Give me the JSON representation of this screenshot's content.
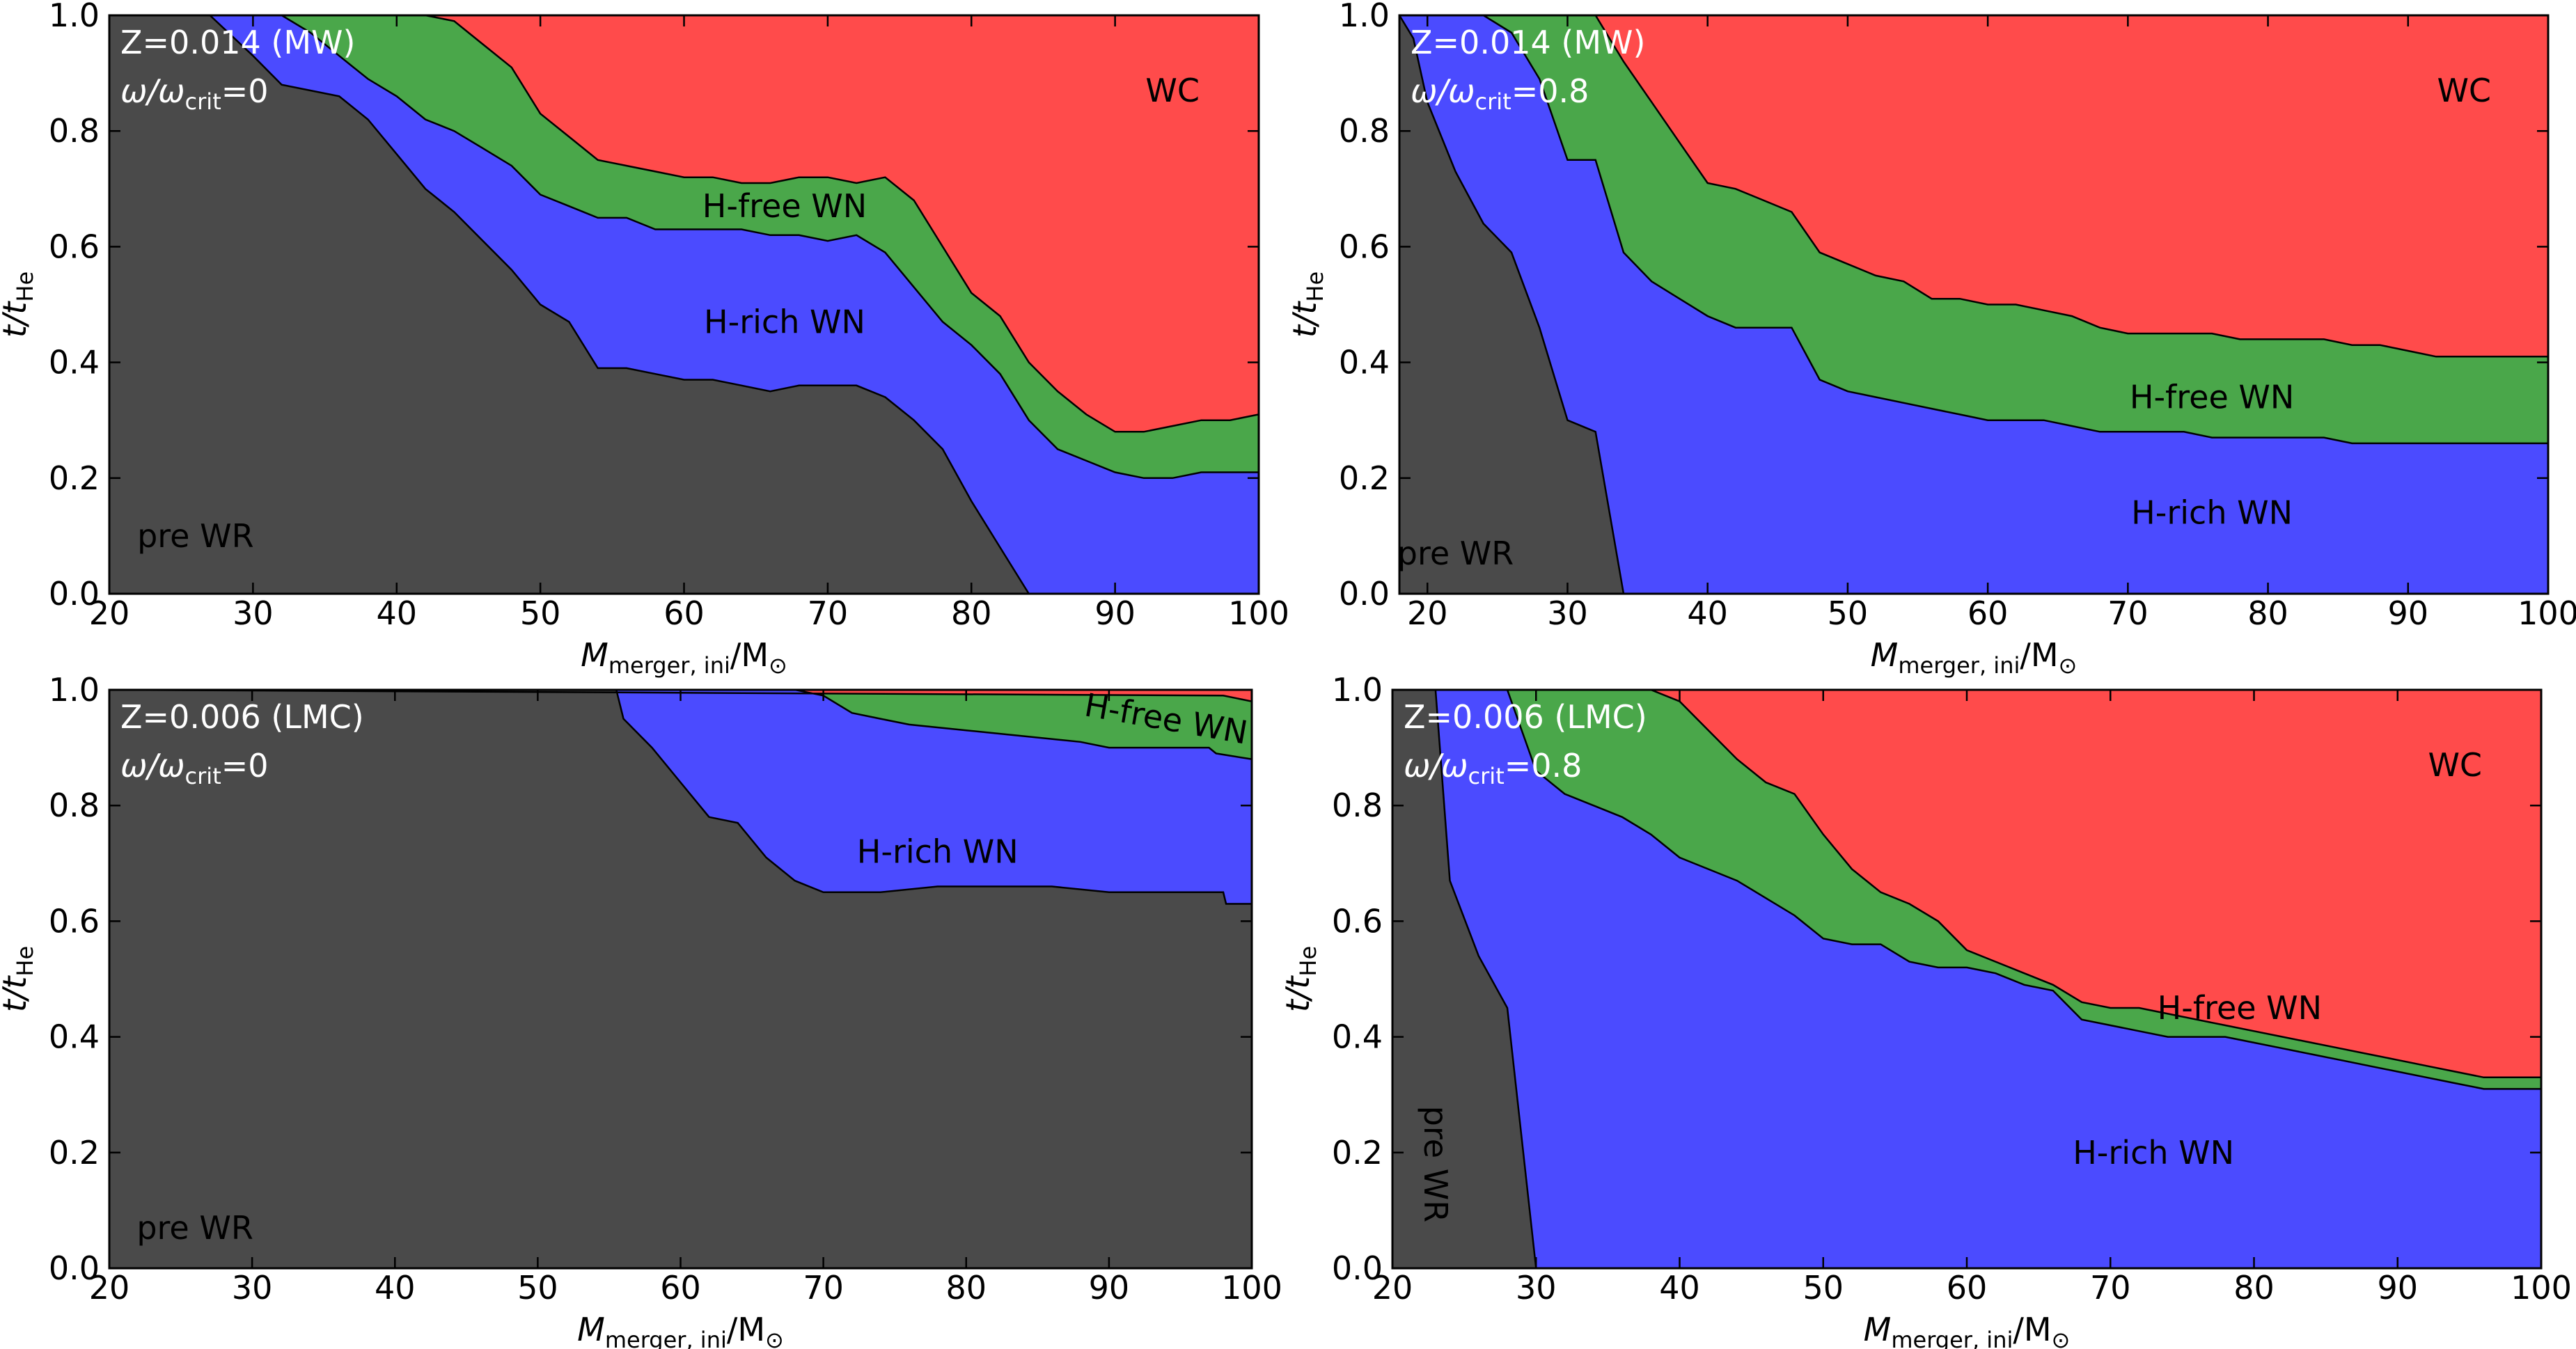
{
  "figure": {
    "y_axis_label": "t/t",
    "y_axis_label_sub": "He",
    "x_axis_label": "M",
    "x_axis_label_sub": "merger, ini",
    "x_axis_label_unit": "/M",
    "x_axis_label_unit_sub": "⊙",
    "colors": {
      "pre WR": "#4a4a4a",
      "H-rich WN": "#4b4bff",
      "H-free WN": "#4aa74a",
      "WC": "#ff4b4b"
    }
  },
  "chart_data": [
    {
      "type": "area",
      "title_line1": "Z=0.014 (MW)",
      "title_line2_symbol": "ω/ω",
      "title_line2_sub": "crit",
      "title_line2_value": "=0",
      "xlim": [
        20,
        100
      ],
      "ylim": [
        0,
        1
      ],
      "xticks": [
        20,
        30,
        40,
        50,
        60,
        70,
        80,
        90,
        100
      ],
      "yticks": [
        0.0,
        0.2,
        0.4,
        0.6,
        0.8,
        1.0
      ],
      "boundaries": [
        {
          "name": "preWR",
          "x": [
            20,
            27,
            30,
            32,
            34,
            36,
            38,
            40,
            42,
            44,
            46,
            48,
            50,
            52,
            54,
            56,
            58,
            60,
            62,
            64,
            66,
            68,
            70,
            72,
            74,
            76,
            78,
            80,
            82,
            84
          ],
          "y": [
            1.0,
            1.0,
            0.93,
            0.88,
            0.87,
            0.86,
            0.82,
            0.76,
            0.7,
            0.66,
            0.61,
            0.56,
            0.5,
            0.47,
            0.39,
            0.39,
            0.38,
            0.37,
            0.37,
            0.36,
            0.35,
            0.36,
            0.36,
            0.36,
            0.34,
            0.3,
            0.25,
            0.16,
            0.08,
            0.0
          ]
        },
        {
          "name": "Hrich",
          "x": [
            20,
            32,
            34,
            36,
            38,
            40,
            42,
            44,
            46,
            48,
            50,
            52,
            54,
            56,
            58,
            60,
            62,
            64,
            66,
            68,
            70,
            72,
            74,
            76,
            78,
            80,
            82,
            84,
            86,
            88,
            90,
            92,
            94,
            96,
            98,
            100
          ],
          "y": [
            1.0,
            1.0,
            0.97,
            0.93,
            0.89,
            0.86,
            0.82,
            0.8,
            0.77,
            0.74,
            0.69,
            0.67,
            0.65,
            0.65,
            0.63,
            0.63,
            0.63,
            0.63,
            0.62,
            0.62,
            0.61,
            0.62,
            0.59,
            0.53,
            0.47,
            0.43,
            0.38,
            0.3,
            0.25,
            0.23,
            0.21,
            0.2,
            0.2,
            0.21,
            0.21,
            0.21
          ]
        },
        {
          "name": "Hfree",
          "x": [
            20,
            40,
            42,
            44,
            46,
            48,
            50,
            52,
            54,
            56,
            58,
            60,
            62,
            64,
            66,
            68,
            70,
            72,
            74,
            76,
            78,
            80,
            82,
            84,
            86,
            88,
            90,
            92,
            94,
            96,
            98,
            100
          ],
          "y": [
            1.0,
            1.0,
            1.0,
            0.99,
            0.95,
            0.91,
            0.83,
            0.79,
            0.75,
            0.74,
            0.73,
            0.72,
            0.72,
            0.71,
            0.71,
            0.72,
            0.72,
            0.71,
            0.72,
            0.68,
            0.6,
            0.52,
            0.48,
            0.4,
            0.35,
            0.31,
            0.28,
            0.28,
            0.29,
            0.3,
            0.3,
            0.31
          ]
        }
      ],
      "labels": [
        {
          "text": "WC",
          "x": 94,
          "y": 0.87,
          "color": "black",
          "rotate": 0
        },
        {
          "text": "H-free WN",
          "x": 67,
          "y": 0.67,
          "color": "black",
          "rotate": 0
        },
        {
          "text": "H-rich WN",
          "x": 67,
          "y": 0.47,
          "color": "black",
          "rotate": 0
        },
        {
          "text": "pre WR",
          "x": 26,
          "y": 0.1,
          "color": "black",
          "rotate": 0
        }
      ]
    },
    {
      "type": "area",
      "title_line1": "Z=0.014 (MW)",
      "title_line2_symbol": "ω/ω",
      "title_line2_sub": "crit",
      "title_line2_value": "=0.8",
      "xlim": [
        18,
        100
      ],
      "ylim": [
        0,
        1
      ],
      "xticks": [
        20,
        30,
        40,
        50,
        60,
        70,
        80,
        90,
        100
      ],
      "yticks": [
        0.0,
        0.2,
        0.4,
        0.6,
        0.8,
        1.0
      ],
      "boundaries": [
        {
          "name": "preWR",
          "x": [
            18,
            19,
            20,
            22,
            24,
            26,
            28,
            30,
            32,
            34
          ],
          "y": [
            1.0,
            0.96,
            0.85,
            0.73,
            0.64,
            0.59,
            0.46,
            0.3,
            0.28,
            0.0
          ]
        },
        {
          "name": "Hrich",
          "x": [
            18,
            24,
            26,
            28,
            30,
            32,
            34,
            36,
            38,
            40,
            42,
            44,
            46,
            48,
            50,
            52,
            54,
            56,
            58,
            60,
            62,
            64,
            66,
            68,
            70,
            72,
            74,
            76,
            78,
            80,
            82,
            84,
            86,
            88,
            90,
            92,
            94,
            96,
            98,
            100
          ],
          "y": [
            1.0,
            1.0,
            0.97,
            0.89,
            0.75,
            0.75,
            0.59,
            0.54,
            0.51,
            0.48,
            0.46,
            0.46,
            0.46,
            0.37,
            0.35,
            0.34,
            0.33,
            0.32,
            0.31,
            0.3,
            0.3,
            0.3,
            0.29,
            0.28,
            0.28,
            0.28,
            0.28,
            0.27,
            0.27,
            0.27,
            0.27,
            0.27,
            0.26,
            0.26,
            0.26,
            0.26,
            0.26,
            0.26,
            0.26,
            0.26
          ]
        },
        {
          "name": "Hfree",
          "x": [
            18,
            32,
            34,
            36,
            38,
            40,
            42,
            44,
            46,
            48,
            50,
            52,
            54,
            56,
            58,
            60,
            62,
            64,
            66,
            68,
            70,
            72,
            74,
            76,
            78,
            80,
            82,
            84,
            86,
            88,
            90,
            92,
            94,
            96,
            98,
            100
          ],
          "y": [
            1.0,
            1.0,
            0.92,
            0.85,
            0.78,
            0.71,
            0.7,
            0.68,
            0.66,
            0.59,
            0.57,
            0.55,
            0.54,
            0.51,
            0.51,
            0.5,
            0.5,
            0.49,
            0.48,
            0.46,
            0.45,
            0.45,
            0.45,
            0.45,
            0.44,
            0.44,
            0.44,
            0.44,
            0.43,
            0.43,
            0.42,
            0.41,
            0.41,
            0.41,
            0.41,
            0.41
          ]
        }
      ],
      "labels": [
        {
          "text": "WC",
          "x": 94,
          "y": 0.87,
          "color": "black",
          "rotate": 0
        },
        {
          "text": "H-free WN",
          "x": 76,
          "y": 0.34,
          "color": "black",
          "rotate": 0
        },
        {
          "text": "H-rich WN",
          "x": 76,
          "y": 0.14,
          "color": "black",
          "rotate": 0
        },
        {
          "text": "pre WR",
          "x": 22,
          "y": 0.07,
          "color": "black",
          "rotate": 0
        }
      ]
    },
    {
      "type": "area",
      "title_line1": "Z=0.006 (LMC)",
      "title_line2_symbol": "ω/ω",
      "title_line2_sub": "crit",
      "title_line2_value": "=0",
      "xlim": [
        20,
        100
      ],
      "ylim": [
        0,
        1
      ],
      "xticks": [
        20,
        30,
        40,
        50,
        60,
        70,
        80,
        90,
        100
      ],
      "yticks": [
        0.0,
        0.2,
        0.4,
        0.6,
        0.8,
        1.0
      ],
      "boundaries": [
        {
          "name": "preWR",
          "x": [
            20,
            55.5,
            56,
            58,
            60,
            62,
            64,
            66,
            68,
            70,
            74,
            78,
            82,
            86,
            90,
            94,
            98,
            98.2,
            100
          ],
          "y": [
            1.0,
            1.0,
            0.95,
            0.9,
            0.84,
            0.78,
            0.77,
            0.71,
            0.67,
            0.65,
            0.65,
            0.66,
            0.66,
            0.66,
            0.65,
            0.65,
            0.65,
            0.63,
            0.63
          ]
        },
        {
          "name": "Hrich",
          "x": [
            20,
            68,
            70,
            72,
            74,
            76,
            80,
            84,
            88,
            90,
            94,
            97,
            97.5,
            100
          ],
          "y": [
            1.0,
            1.0,
            0.99,
            0.96,
            0.95,
            0.94,
            0.93,
            0.92,
            0.91,
            0.9,
            0.9,
            0.9,
            0.89,
            0.88
          ]
        },
        {
          "name": "Hfree",
          "x": [
            20,
            98,
            100
          ],
          "y": [
            1.0,
            0.99,
            0.98
          ]
        }
      ],
      "labels": [
        {
          "text": "H-free WN",
          "x": 94,
          "y": 0.95,
          "color": "black",
          "rotate": 10
        },
        {
          "text": "H-rich WN",
          "x": 78,
          "y": 0.72,
          "color": "black",
          "rotate": 0
        },
        {
          "text": "pre WR",
          "x": 26,
          "y": 0.07,
          "color": "black",
          "rotate": 0
        }
      ]
    },
    {
      "type": "area",
      "title_line1": "Z=0.006 (LMC)",
      "title_line2_symbol": "ω/ω",
      "title_line2_sub": "crit",
      "title_line2_value": "=0.8",
      "xlim": [
        20,
        100
      ],
      "ylim": [
        0,
        1
      ],
      "xticks": [
        20,
        30,
        40,
        50,
        60,
        70,
        80,
        90,
        100
      ],
      "yticks": [
        0.0,
        0.2,
        0.4,
        0.6,
        0.8,
        1.0
      ],
      "boundaries": [
        {
          "name": "preWR",
          "x": [
            20,
            23,
            24,
            26,
            28,
            30
          ],
          "y": [
            1.0,
            1.0,
            0.67,
            0.54,
            0.45,
            0.0
          ]
        },
        {
          "name": "Hrich",
          "x": [
            20,
            28,
            30,
            32,
            34,
            36,
            38,
            40,
            42,
            44,
            46,
            48,
            50,
            52,
            54,
            56,
            58,
            60,
            62,
            64,
            66,
            68,
            70,
            72,
            74,
            76,
            78,
            80,
            82,
            84,
            86,
            88,
            90,
            92,
            94,
            96,
            98,
            100
          ],
          "y": [
            1.0,
            1.0,
            0.86,
            0.82,
            0.8,
            0.78,
            0.75,
            0.71,
            0.69,
            0.67,
            0.64,
            0.61,
            0.57,
            0.56,
            0.56,
            0.53,
            0.52,
            0.52,
            0.51,
            0.49,
            0.48,
            0.43,
            0.42,
            0.41,
            0.4,
            0.4,
            0.4,
            0.39,
            0.38,
            0.37,
            0.36,
            0.35,
            0.34,
            0.33,
            0.32,
            0.31,
            0.31,
            0.31
          ]
        },
        {
          "name": "Hfree",
          "x": [
            20,
            38,
            40,
            42,
            44,
            46,
            48,
            50,
            52,
            54,
            56,
            58,
            60,
            62,
            64,
            66,
            68,
            70,
            72,
            74,
            76,
            78,
            80,
            82,
            84,
            86,
            88,
            90,
            92,
            94,
            96,
            98,
            100
          ],
          "y": [
            1.0,
            1.0,
            0.98,
            0.93,
            0.88,
            0.84,
            0.82,
            0.75,
            0.69,
            0.65,
            0.63,
            0.6,
            0.55,
            0.53,
            0.51,
            0.49,
            0.46,
            0.45,
            0.45,
            0.44,
            0.43,
            0.42,
            0.41,
            0.4,
            0.39,
            0.38,
            0.37,
            0.36,
            0.35,
            0.34,
            0.33,
            0.33,
            0.33
          ]
        }
      ],
      "labels": [
        {
          "text": "WC",
          "x": 94,
          "y": 0.87,
          "color": "black",
          "rotate": 0
        },
        {
          "text": "H-free WN",
          "x": 79,
          "y": 0.45,
          "color": "black",
          "rotate": 0
        },
        {
          "text": "H-rich WN",
          "x": 73,
          "y": 0.2,
          "color": "black",
          "rotate": 0
        },
        {
          "text": "pre WR",
          "x": 23,
          "y": 0.18,
          "color": "black",
          "rotate": 90
        }
      ]
    }
  ]
}
